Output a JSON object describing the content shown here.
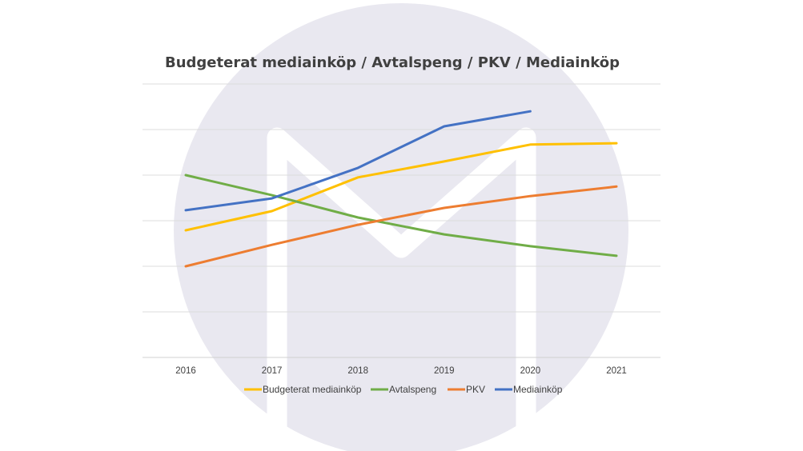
{
  "chart_data": {
    "type": "line",
    "title": "Budgeterat mediainköp / Avtalspeng / PKV / Mediainköp",
    "xlabel": "",
    "ylabel": "",
    "categories": [
      "2016",
      "2017",
      "2018",
      "2019",
      "2020",
      "2021"
    ],
    "ylim": [
      0,
      6
    ],
    "y_tick_labels_shown": false,
    "grid": true,
    "legend": "bottom",
    "series": [
      {
        "name": "Budgeterat mediainköp",
        "color": "#FFC000",
        "values": [
          2.79,
          3.21,
          3.95,
          4.3,
          4.67,
          4.7
        ]
      },
      {
        "name": "Avtalspeng",
        "color": "#70AD47",
        "values": [
          4.0,
          3.56,
          3.07,
          2.7,
          2.44,
          2.23
        ]
      },
      {
        "name": "PKV",
        "color": "#ED7D31",
        "values": [
          2.0,
          2.47,
          2.91,
          3.28,
          3.54,
          3.75
        ]
      },
      {
        "name": "Mediainköp",
        "color": "#4472C4",
        "values": [
          3.23,
          3.49,
          4.16,
          5.07,
          5.4,
          null
        ]
      }
    ]
  },
  "background": {
    "circle_color": "#E9E8F0",
    "logo_color": "#FFFFFF"
  }
}
